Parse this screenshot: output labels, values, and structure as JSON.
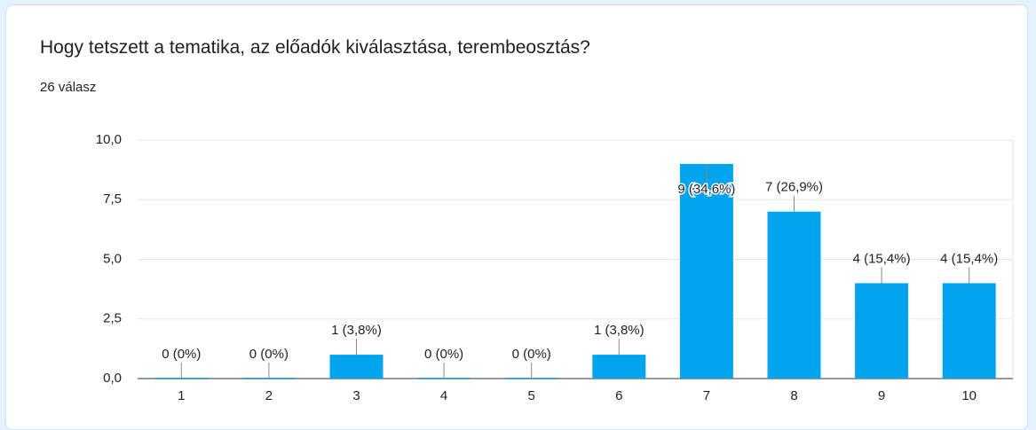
{
  "chart_data": {
    "type": "bar",
    "title": "Hogy tetszett a tematika, az előadók kiválasztása, terembeosztás?",
    "subtitle": "26 válasz",
    "categories": [
      "1",
      "2",
      "3",
      "4",
      "5",
      "6",
      "7",
      "8",
      "9",
      "10"
    ],
    "values": [
      0,
      0,
      1,
      0,
      0,
      1,
      9,
      7,
      4,
      4
    ],
    "value_labels": [
      "0 (0%)",
      "0 (0%)",
      "1 (3,8%)",
      "0 (0%)",
      "0 (0%)",
      "1 (3,8%)",
      "9 (34,6%)",
      "7 (26,9%)",
      "4 (15,4%)",
      "4 (15,4%)"
    ],
    "color": "#03a4ee",
    "ylim": [
      0,
      10
    ],
    "yticks": [
      {
        "value": 0,
        "label": "0,0"
      },
      {
        "value": 2.5,
        "label": "2,5"
      },
      {
        "value": 5,
        "label": "5,0"
      },
      {
        "value": 7.5,
        "label": "7,5"
      },
      {
        "value": 10,
        "label": "10,0"
      }
    ],
    "grid": true
  }
}
